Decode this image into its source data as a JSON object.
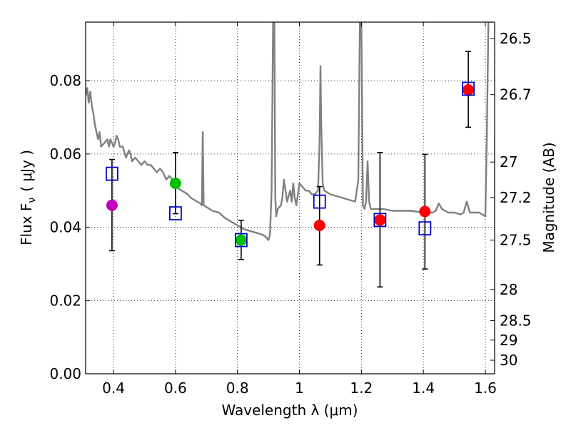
{
  "chart_data": {
    "type": "scatter",
    "xlabel": "Wavelength  λ (μm)",
    "ylabel": "Flux  F",
    "ylabel_sub": "ν",
    "ylabel_unit": "( μJy )",
    "y2label": "Magnitude (AB)",
    "xlim": [
      0.31,
      1.63
    ],
    "ylim": [
      0.0,
      0.096
    ],
    "grid": true,
    "xticks": [
      0.4,
      0.6,
      0.8,
      1.0,
      1.2,
      1.4,
      1.6
    ],
    "xtick_labels": [
      "0.4",
      "0.6",
      "0.8",
      "1",
      "1.2",
      "1.4",
      "1.6"
    ],
    "yticks": [
      0.0,
      0.02,
      0.04,
      0.06,
      0.08
    ],
    "ytick_labels": [
      "0.00",
      "0.02",
      "0.04",
      "0.06",
      "0.08"
    ],
    "y2ticks": [
      {
        "label": "26.5",
        "flux": 0.0915
      },
      {
        "label": "26.7",
        "flux": 0.0762
      },
      {
        "label": "27",
        "flux": 0.0578
      },
      {
        "label": "27.2",
        "flux": 0.0481
      },
      {
        "label": "27.5",
        "flux": 0.0365
      },
      {
        "label": "28",
        "flux": 0.023
      },
      {
        "label": "28.5",
        "flux": 0.0145
      },
      {
        "label": "29",
        "flux": 0.0092
      },
      {
        "label": "30",
        "flux": 0.0037
      }
    ],
    "colors": {
      "model": "#808080",
      "observed_uv": "#bf00bf",
      "observed_optical": "#00bf00",
      "observed_ir": "#ff0000",
      "synthetic": "#0000cc",
      "errorbar": "#000000"
    },
    "series": [
      {
        "name": "model SED",
        "kind": "line",
        "points": [
          [
            0.31,
            0.076
          ],
          [
            0.315,
            0.078
          ],
          [
            0.32,
            0.074
          ],
          [
            0.325,
            0.077
          ],
          [
            0.33,
            0.073
          ],
          [
            0.335,
            0.071
          ],
          [
            0.34,
            0.068
          ],
          [
            0.345,
            0.066
          ],
          [
            0.35,
            0.064
          ],
          [
            0.355,
            0.066
          ],
          [
            0.36,
            0.062
          ],
          [
            0.37,
            0.063
          ],
          [
            0.38,
            0.064
          ],
          [
            0.385,
            0.062
          ],
          [
            0.39,
            0.064
          ],
          [
            0.395,
            0.063
          ],
          [
            0.4,
            0.062
          ],
          [
            0.405,
            0.063
          ],
          [
            0.41,
            0.065
          ],
          [
            0.415,
            0.064
          ],
          [
            0.42,
            0.062
          ],
          [
            0.43,
            0.062
          ],
          [
            0.44,
            0.059
          ],
          [
            0.45,
            0.061
          ],
          [
            0.455,
            0.06
          ],
          [
            0.46,
            0.058
          ],
          [
            0.47,
            0.059
          ],
          [
            0.48,
            0.058
          ],
          [
            0.49,
            0.057
          ],
          [
            0.5,
            0.058
          ],
          [
            0.51,
            0.057
          ],
          [
            0.52,
            0.057
          ],
          [
            0.53,
            0.056
          ],
          [
            0.54,
            0.055
          ],
          [
            0.55,
            0.056
          ],
          [
            0.56,
            0.055
          ],
          [
            0.57,
            0.053
          ],
          [
            0.58,
            0.054
          ],
          [
            0.59,
            0.053
          ],
          [
            0.6,
            0.052
          ],
          [
            0.61,
            0.0505
          ],
          [
            0.62,
            0.05
          ],
          [
            0.63,
            0.0495
          ],
          [
            0.64,
            0.049
          ],
          [
            0.65,
            0.048
          ],
          [
            0.66,
            0.0475
          ],
          [
            0.67,
            0.047
          ],
          [
            0.68,
            0.0465
          ],
          [
            0.685,
            0.046
          ],
          [
            0.688,
            0.066
          ],
          [
            0.691,
            0.046
          ],
          [
            0.7,
            0.0455
          ],
          [
            0.71,
            0.045
          ],
          [
            0.72,
            0.0445
          ],
          [
            0.74,
            0.044
          ],
          [
            0.76,
            0.0425
          ],
          [
            0.78,
            0.0415
          ],
          [
            0.8,
            0.0405
          ],
          [
            0.82,
            0.0395
          ],
          [
            0.84,
            0.039
          ],
          [
            0.86,
            0.0385
          ],
          [
            0.88,
            0.038
          ],
          [
            0.89,
            0.0375
          ],
          [
            0.9,
            0.0365
          ],
          [
            0.905,
            0.038
          ],
          [
            0.91,
            0.05
          ],
          [
            0.915,
            0.096
          ],
          [
            0.919,
            0.096
          ],
          [
            0.922,
            0.048
          ],
          [
            0.925,
            0.043
          ],
          [
            0.93,
            0.045
          ],
          [
            0.94,
            0.046
          ],
          [
            0.945,
            0.048
          ],
          [
            0.95,
            0.053
          ],
          [
            0.955,
            0.05
          ],
          [
            0.96,
            0.047
          ],
          [
            0.97,
            0.05
          ],
          [
            0.975,
            0.047
          ],
          [
            0.98,
            0.052
          ],
          [
            0.985,
            0.048
          ],
          [
            0.99,
            0.046
          ],
          [
            1.0,
            0.052
          ],
          [
            1.01,
            0.051
          ],
          [
            1.02,
            0.05
          ],
          [
            1.03,
            0.05
          ],
          [
            1.04,
            0.049
          ],
          [
            1.05,
            0.049
          ],
          [
            1.06,
            0.05
          ],
          [
            1.065,
            0.063
          ],
          [
            1.068,
            0.084
          ],
          [
            1.07,
            0.07
          ],
          [
            1.075,
            0.052
          ],
          [
            1.08,
            0.05
          ],
          [
            1.1,
            0.049
          ],
          [
            1.12,
            0.0485
          ],
          [
            1.14,
            0.048
          ],
          [
            1.16,
            0.0475
          ],
          [
            1.18,
            0.047
          ],
          [
            1.19,
            0.053
          ],
          [
            1.195,
            0.096
          ],
          [
            1.2,
            0.096
          ],
          [
            1.205,
            0.046
          ],
          [
            1.21,
            0.045
          ],
          [
            1.215,
            0.047
          ],
          [
            1.22,
            0.058
          ],
          [
            1.225,
            0.047
          ],
          [
            1.23,
            0.045
          ],
          [
            1.25,
            0.045
          ],
          [
            1.27,
            0.045
          ],
          [
            1.3,
            0.0445
          ],
          [
            1.33,
            0.0445
          ],
          [
            1.36,
            0.0445
          ],
          [
            1.4,
            0.044
          ],
          [
            1.43,
            0.044
          ],
          [
            1.44,
            0.0445
          ],
          [
            1.45,
            0.0465
          ],
          [
            1.46,
            0.045
          ],
          [
            1.48,
            0.044
          ],
          [
            1.5,
            0.044
          ],
          [
            1.52,
            0.0435
          ],
          [
            1.53,
            0.044
          ],
          [
            1.54,
            0.047
          ],
          [
            1.55,
            0.044
          ],
          [
            1.58,
            0.044
          ],
          [
            1.6,
            0.043
          ],
          [
            1.605,
            0.065
          ],
          [
            1.61,
            0.096
          ]
        ]
      },
      {
        "name": "observed photometry",
        "kind": "points",
        "points": [
          {
            "x": 0.395,
            "y": 0.046,
            "color": "observed_uv"
          },
          {
            "x": 0.6,
            "y": 0.052,
            "color": "observed_optical"
          },
          {
            "x": 0.812,
            "y": 0.0365,
            "color": "observed_optical"
          },
          {
            "x": 1.065,
            "y": 0.0405,
            "color": "observed_ir"
          },
          {
            "x": 1.26,
            "y": 0.042,
            "color": "observed_ir"
          },
          {
            "x": 1.405,
            "y": 0.0443,
            "color": "observed_ir"
          },
          {
            "x": 1.545,
            "y": 0.0775,
            "color": "observed_ir"
          }
        ]
      },
      {
        "name": "synthetic model photometry",
        "kind": "squares",
        "points": [
          {
            "x": 0.395,
            "y": 0.0546
          },
          {
            "x": 0.6,
            "y": 0.0438
          },
          {
            "x": 0.812,
            "y": 0.0365
          },
          {
            "x": 1.065,
            "y": 0.047
          },
          {
            "x": 1.26,
            "y": 0.042
          },
          {
            "x": 1.405,
            "y": 0.0397
          },
          {
            "x": 1.545,
            "y": 0.0778
          }
        ]
      },
      {
        "name": "error bars",
        "kind": "errorbars",
        "points": [
          {
            "x": 0.395,
            "lo": 0.0336,
            "hi": 0.0585
          },
          {
            "x": 0.6,
            "lo": 0.0437,
            "hi": 0.0604
          },
          {
            "x": 0.812,
            "lo": 0.0312,
            "hi": 0.0419
          },
          {
            "x": 1.065,
            "lo": 0.0297,
            "hi": 0.0511
          },
          {
            "x": 1.26,
            "lo": 0.0237,
            "hi": 0.0604
          },
          {
            "x": 1.405,
            "lo": 0.0286,
            "hi": 0.0599
          },
          {
            "x": 1.545,
            "lo": 0.0673,
            "hi": 0.088
          }
        ]
      }
    ]
  }
}
